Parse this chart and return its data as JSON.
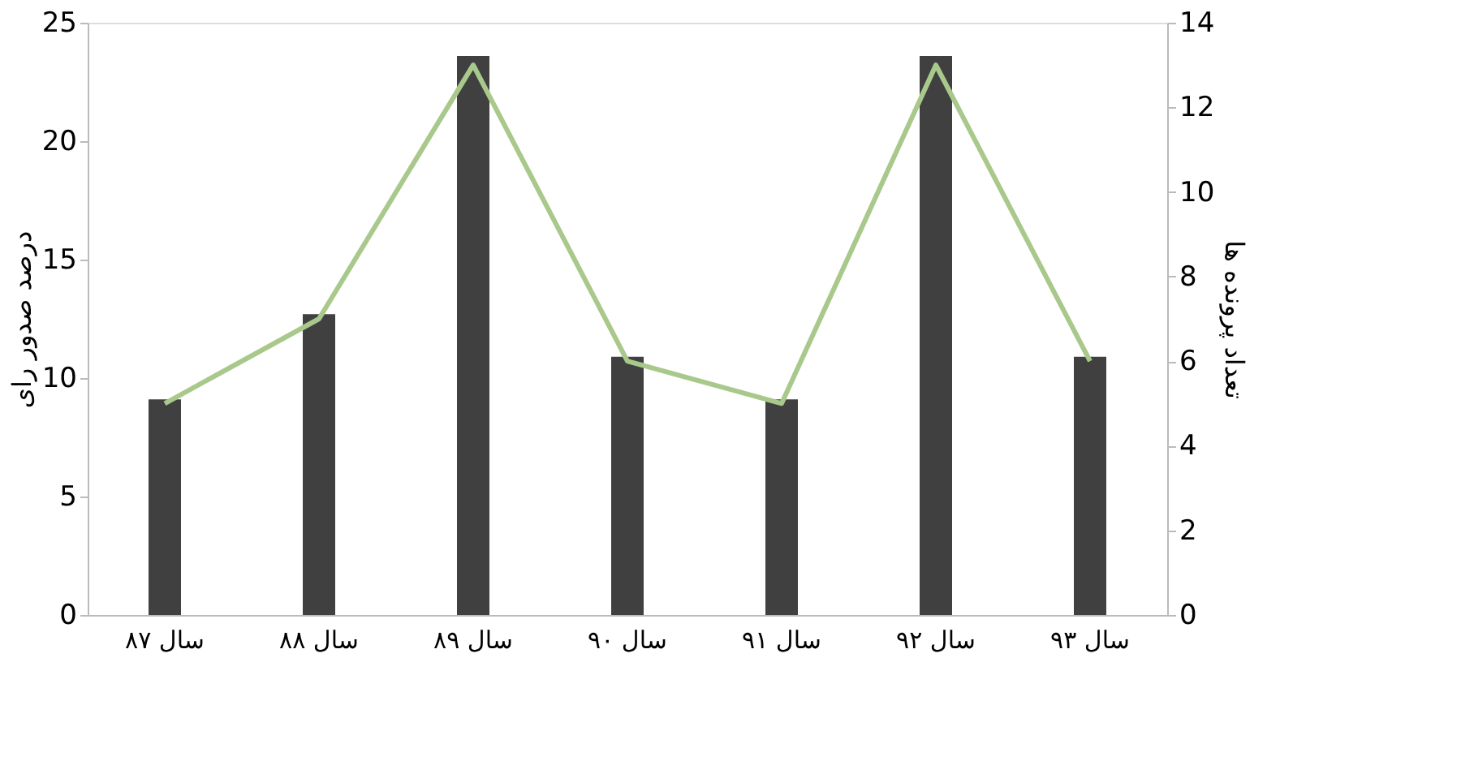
{
  "chart_data": {
    "type": "bar",
    "categories": [
      "سال ۸۷",
      "سال ۸۸",
      "سال ۸۹",
      "سال ۹۰",
      "سال ۹۱",
      "سال ۹۲",
      "سال ۹۳"
    ],
    "ylabel": "درصد صدور رای",
    "y2label": "تعداد پرونده ها",
    "series": [
      {
        "color": "#404040",
        "values": [
          9.1,
          12.7,
          23.6,
          10.9,
          9.1,
          23.6,
          10.9
        ]
      },
      {
        "type": "line",
        "axis": "y2",
        "color": "#a9c98c",
        "values": [
          5,
          7,
          13,
          6,
          5,
          13,
          6
        ]
      }
    ],
    "ylim": [
      0,
      25
    ],
    "yticks": [
      0,
      5,
      10,
      15,
      20,
      25
    ],
    "y2lim": [
      0,
      14
    ],
    "y2ticks": [
      0,
      2,
      4,
      6,
      8,
      10,
      12,
      14
    ],
    "grid": false
  }
}
